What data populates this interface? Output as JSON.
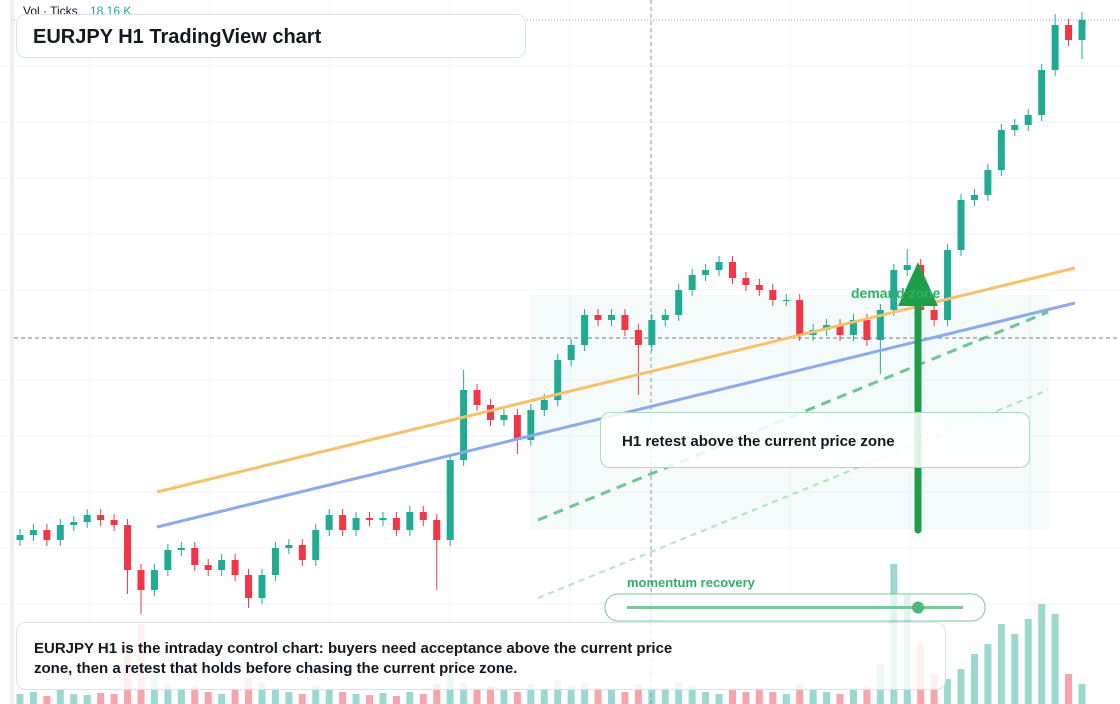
{
  "header": {
    "title": "EURJPY H1 TradingView chart",
    "volume_label": "Vol · Ticks",
    "volume_value": "18.16 K"
  },
  "chart_data": {
    "type": "candlestick",
    "open": [
      164,
      169,
      174,
      164,
      179,
      182,
      189,
      184,
      179,
      134,
      114,
      134,
      154,
      156,
      139,
      134,
      144,
      129,
      106,
      129,
      156,
      159,
      144,
      174,
      189,
      174,
      186,
      184,
      186,
      174,
      192,
      184,
      164,
      244,
      314,
      299,
      284,
      289,
      264,
      294,
      304,
      344,
      359,
      389,
      384,
      389,
      374,
      359,
      384,
      389,
      414,
      429,
      434,
      442,
      426,
      419,
      414,
      404,
      404,
      369,
      374,
      379,
      369,
      384,
      364,
      394,
      434,
      439,
      394,
      384,
      454,
      504,
      509,
      534,
      574,
      579,
      589,
      634,
      679,
      664
    ],
    "high": [
      175,
      180,
      180,
      185,
      188,
      195,
      195,
      190,
      185,
      140,
      140,
      160,
      162,
      162,
      145,
      150,
      150,
      135,
      135,
      162,
      165,
      165,
      180,
      195,
      195,
      192,
      192,
      192,
      192,
      198,
      198,
      190,
      250,
      334,
      320,
      305,
      295,
      295,
      300,
      310,
      350,
      365,
      395,
      395,
      395,
      395,
      380,
      390,
      395,
      420,
      435,
      440,
      448,
      448,
      432,
      425,
      420,
      410,
      410,
      380,
      385,
      385,
      390,
      390,
      400,
      440,
      455,
      445,
      400,
      460,
      510,
      515,
      540,
      580,
      585,
      595,
      640,
      690,
      685,
      692
    ],
    "low": [
      158,
      163,
      158,
      158,
      173,
      176,
      178,
      173,
      110,
      90,
      108,
      128,
      148,
      133,
      128,
      128,
      123,
      96,
      100,
      123,
      150,
      138,
      138,
      168,
      168,
      168,
      178,
      178,
      168,
      168,
      178,
      114,
      158,
      238,
      293,
      278,
      278,
      250,
      258,
      288,
      298,
      338,
      353,
      378,
      378,
      368,
      309,
      353,
      378,
      383,
      408,
      423,
      428,
      420,
      413,
      408,
      398,
      398,
      363,
      363,
      368,
      363,
      363,
      358,
      330,
      388,
      428,
      200,
      378,
      378,
      448,
      498,
      503,
      528,
      568,
      573,
      583,
      628,
      658,
      645
    ],
    "close": [
      169,
      174,
      164,
      179,
      182,
      189,
      184,
      179,
      134,
      114,
      134,
      154,
      156,
      139,
      134,
      144,
      129,
      106,
      129,
      156,
      159,
      144,
      174,
      189,
      174,
      186,
      184,
      186,
      174,
      192,
      184,
      164,
      244,
      314,
      299,
      284,
      289,
      264,
      294,
      304,
      344,
      359,
      389,
      384,
      389,
      374,
      359,
      384,
      389,
      414,
      429,
      434,
      442,
      426,
      419,
      414,
      404,
      404,
      369,
      374,
      379,
      369,
      384,
      364,
      394,
      434,
      439,
      394,
      384,
      454,
      504,
      509,
      534,
      574,
      579,
      589,
      634,
      679,
      664,
      684
    ],
    "volume": [
      10,
      12,
      8,
      15,
      10,
      9,
      11,
      10,
      60,
      80,
      40,
      20,
      15,
      18,
      12,
      10,
      14,
      25,
      22,
      16,
      12,
      10,
      18,
      14,
      12,
      10,
      9,
      11,
      8,
      12,
      10,
      20,
      30,
      22,
      16,
      18,
      14,
      12,
      20,
      15,
      24,
      18,
      22,
      16,
      14,
      12,
      20,
      14,
      16,
      22,
      18,
      12,
      10,
      14,
      12,
      16,
      12,
      10,
      20,
      14,
      12,
      10,
      16,
      18,
      40,
      140,
      110,
      60,
      30,
      25,
      35,
      50,
      60,
      80,
      70,
      85,
      100,
      90,
      30,
      20
    ],
    "ylim": [
      0,
      704
    ],
    "vlim": [
      0,
      704
    ],
    "up_color": "#22ab94",
    "down_color": "#f23645"
  },
  "annotations": {
    "retest": "H1 retest above the current price zone",
    "zone": "demand zone",
    "momentum": "momentum recovery"
  },
  "footer": {
    "text": "EURJPY H1 is the intraday control chart: buyers need acceptance above the current price zone, then a retest that holds before chasing the current price zone."
  }
}
